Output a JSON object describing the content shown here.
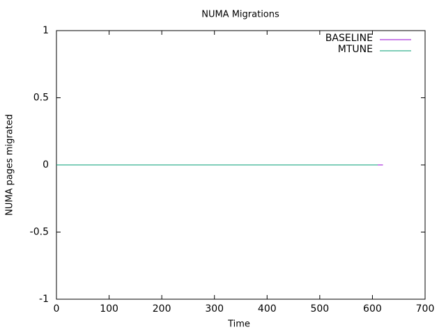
{
  "chart_data": {
    "type": "line",
    "title": "NUMA Migrations",
    "x_label": "Time",
    "y_label": "NUMA pages migrated",
    "series": [
      {
        "name": "BASELINE",
        "color": "#9400d3",
        "x": [
          0,
          620
        ],
        "values": [
          0,
          0
        ]
      },
      {
        "name": "MTUNE",
        "color": "#009e73",
        "x": [
          0,
          610
        ],
        "values": [
          0,
          0
        ]
      }
    ],
    "xlim": [
      0,
      700
    ],
    "xticks": [
      0,
      100,
      200,
      300,
      400,
      500,
      600,
      700
    ],
    "ylim": [
      -1,
      1
    ],
    "yticks": [
      -1,
      -0.5,
      0,
      0.5,
      1
    ],
    "grid": false,
    "legend": "top-right"
  }
}
